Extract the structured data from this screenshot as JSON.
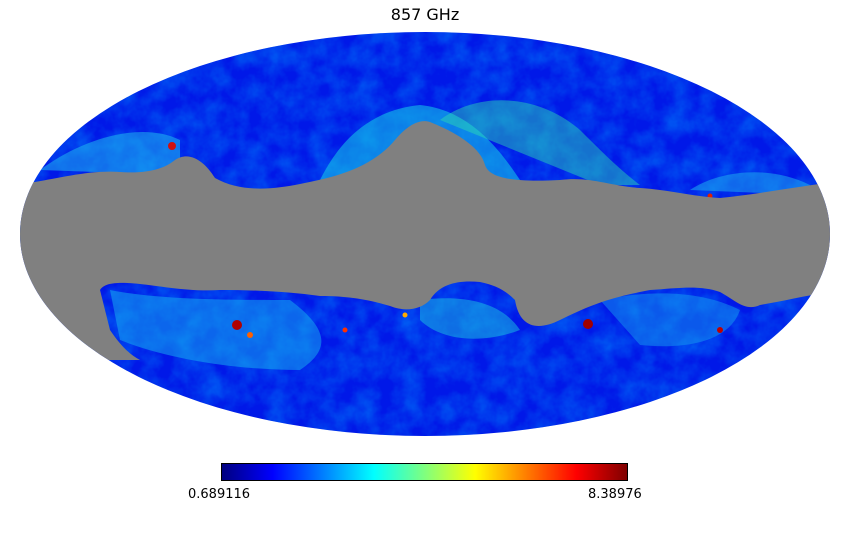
{
  "title": "857 GHz",
  "colorbar": {
    "min_label": "0.689116",
    "max_label": "8.38976",
    "colormap": "jet",
    "colors": [
      "#00007f",
      "#0000ff",
      "#007fff",
      "#00ffff",
      "#7fff7f",
      "#ffff00",
      "#ff7f00",
      "#ff0000",
      "#7f0000"
    ]
  },
  "map": {
    "projection": "mollweide",
    "masked_color": "#808080",
    "background_color": "#0022ee"
  }
}
